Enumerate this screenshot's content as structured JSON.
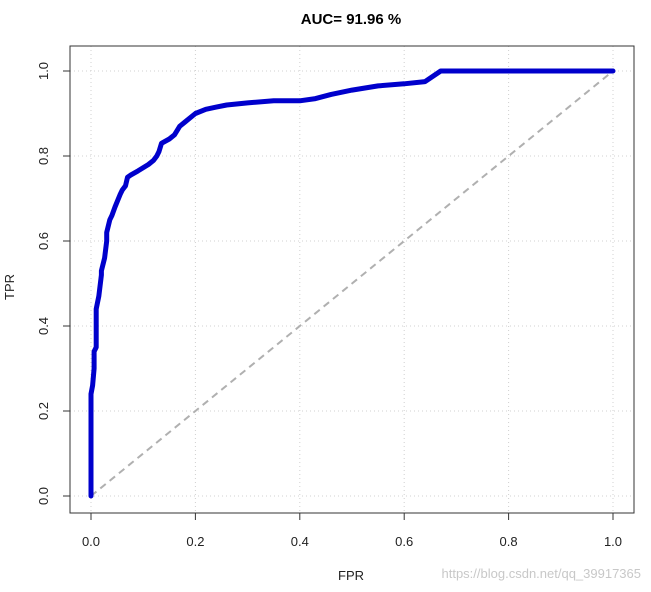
{
  "chart_data": {
    "type": "line",
    "title": "AUC= 91.96 %",
    "xlabel": "FPR",
    "ylabel": "TPR",
    "xlim": [
      0,
      1
    ],
    "ylim": [
      0,
      1
    ],
    "x_ticks": [
      "0.0",
      "0.2",
      "0.4",
      "0.6",
      "0.8",
      "1.0"
    ],
    "y_ticks": [
      "0.0",
      "0.2",
      "0.4",
      "0.6",
      "0.8",
      "1.0"
    ],
    "grid": true,
    "colors": {
      "roc": "#0000cc",
      "diagonal": "#b0b0b0",
      "grid": "#d0d0d0"
    },
    "series": [
      {
        "x": [
          0.0,
          0.0,
          0.003,
          0.006,
          0.006,
          0.01,
          0.01,
          0.015,
          0.02,
          0.02,
          0.026,
          0.03,
          0.03,
          0.036,
          0.04,
          0.046,
          0.056,
          0.06,
          0.066,
          0.07,
          0.076,
          0.09,
          0.11,
          0.12,
          0.126,
          0.13,
          0.135,
          0.15,
          0.16,
          0.17,
          0.18,
          0.2,
          0.22,
          0.24,
          0.26,
          0.3,
          0.35,
          0.4,
          0.43,
          0.46,
          0.5,
          0.55,
          0.6,
          0.64,
          0.67,
          0.7,
          0.8,
          0.9,
          1.0
        ],
        "y": [
          0.0,
          0.24,
          0.26,
          0.3,
          0.34,
          0.35,
          0.44,
          0.47,
          0.52,
          0.53,
          0.56,
          0.6,
          0.62,
          0.65,
          0.66,
          0.68,
          0.71,
          0.72,
          0.73,
          0.75,
          0.755,
          0.765,
          0.78,
          0.79,
          0.8,
          0.81,
          0.83,
          0.84,
          0.85,
          0.87,
          0.88,
          0.9,
          0.91,
          0.915,
          0.92,
          0.925,
          0.93,
          0.93,
          0.935,
          0.945,
          0.955,
          0.965,
          0.97,
          0.975,
          1.0,
          1.0,
          1.0,
          1.0,
          1.0
        ]
      }
    ],
    "reference_line": {
      "x": [
        0,
        1
      ],
      "y": [
        0,
        1
      ]
    }
  },
  "watermark": "https://blog.csdn.net/qq_39917365"
}
